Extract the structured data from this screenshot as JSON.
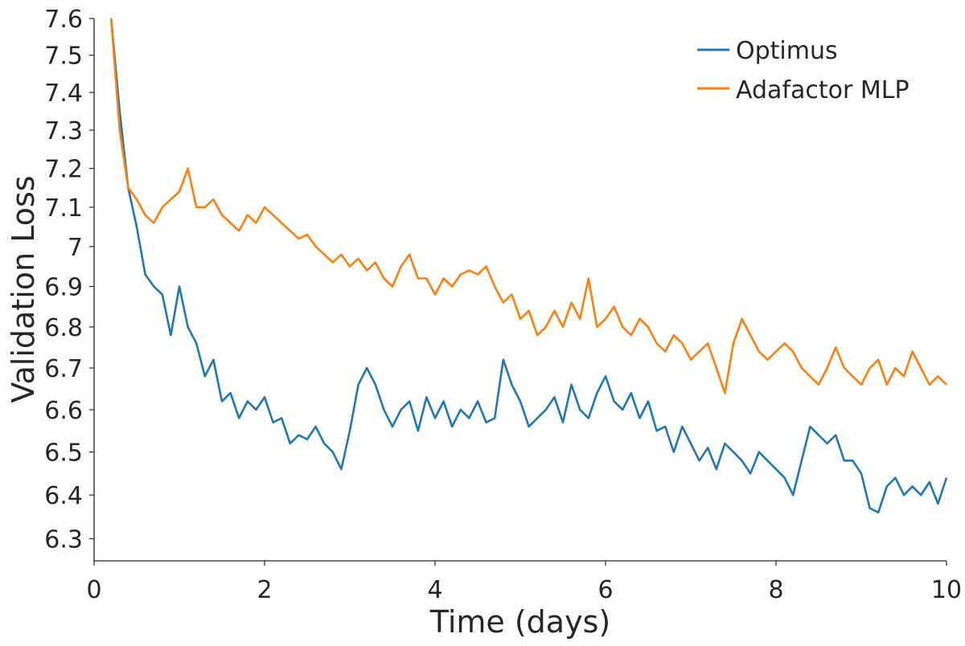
{
  "chart_data": {
    "type": "line",
    "title": "",
    "xlabel": "Time (days)",
    "ylabel": "Validation Loss",
    "xlim": [
      0,
      10
    ],
    "ylim": [
      6.25,
      7.6
    ],
    "yscale": "log",
    "grid": false,
    "legend_position": "top-right",
    "x_ticks": [
      "0",
      "2",
      "4",
      "6",
      "8",
      "10"
    ],
    "y_ticks": [
      "6.3",
      "6.4",
      "6.5",
      "6.6",
      "6.7",
      "6.8",
      "6.9",
      "7",
      "7.1",
      "7.2",
      "7.3",
      "7.4",
      "7.5",
      "7.6"
    ],
    "x": [
      0.2,
      0.3,
      0.4,
      0.5,
      0.6,
      0.7,
      0.8,
      0.9,
      1.0,
      1.1,
      1.2,
      1.3,
      1.4,
      1.5,
      1.6,
      1.7,
      1.8,
      1.9,
      2.0,
      2.1,
      2.2,
      2.3,
      2.4,
      2.5,
      2.6,
      2.7,
      2.8,
      2.9,
      3.0,
      3.1,
      3.2,
      3.3,
      3.4,
      3.5,
      3.6,
      3.7,
      3.8,
      3.9,
      4.0,
      4.1,
      4.2,
      4.3,
      4.4,
      4.5,
      4.6,
      4.7,
      4.8,
      4.9,
      5.0,
      5.1,
      5.2,
      5.3,
      5.4,
      5.5,
      5.6,
      5.7,
      5.8,
      5.9,
      6.0,
      6.1,
      6.2,
      6.3,
      6.4,
      6.5,
      6.6,
      6.7,
      6.8,
      6.9,
      7.0,
      7.1,
      7.2,
      7.3,
      7.4,
      7.5,
      7.6,
      7.7,
      7.8,
      7.9,
      8.0,
      8.1,
      8.2,
      8.3,
      8.4,
      8.5,
      8.6,
      8.7,
      8.8,
      8.9,
      9.0,
      9.1,
      9.2,
      9.3,
      9.4,
      9.5,
      9.6,
      9.7,
      9.8,
      9.9,
      10.0
    ],
    "series": [
      {
        "name": "Optimus",
        "color": "#1f77b4",
        "values": [
          7.6,
          7.35,
          7.15,
          7.05,
          6.93,
          6.9,
          6.88,
          6.78,
          6.9,
          6.8,
          6.76,
          6.68,
          6.72,
          6.62,
          6.64,
          6.58,
          6.62,
          6.6,
          6.63,
          6.57,
          6.58,
          6.52,
          6.54,
          6.53,
          6.56,
          6.52,
          6.5,
          6.46,
          6.55,
          6.66,
          6.7,
          6.66,
          6.6,
          6.56,
          6.6,
          6.62,
          6.55,
          6.63,
          6.58,
          6.62,
          6.56,
          6.6,
          6.58,
          6.62,
          6.57,
          6.58,
          6.72,
          6.66,
          6.62,
          6.56,
          6.58,
          6.6,
          6.63,
          6.57,
          6.66,
          6.6,
          6.58,
          6.64,
          6.68,
          6.62,
          6.6,
          6.64,
          6.58,
          6.62,
          6.55,
          6.56,
          6.5,
          6.56,
          6.52,
          6.48,
          6.51,
          6.46,
          6.52,
          6.5,
          6.48,
          6.45,
          6.5,
          6.48,
          6.46,
          6.44,
          6.4,
          6.48,
          6.56,
          6.54,
          6.52,
          6.54,
          6.48,
          6.48,
          6.45,
          6.37,
          6.36,
          6.42,
          6.44,
          6.4,
          6.42,
          6.4,
          6.43,
          6.38,
          6.44
        ]
      },
      {
        "name": "Adafactor MLP",
        "color": "#ff7f0e",
        "values": [
          7.6,
          7.3,
          7.15,
          7.12,
          7.08,
          7.06,
          7.1,
          7.12,
          7.14,
          7.2,
          7.1,
          7.1,
          7.12,
          7.08,
          7.06,
          7.04,
          7.08,
          7.06,
          7.1,
          7.08,
          7.06,
          7.04,
          7.02,
          7.03,
          7.0,
          6.98,
          6.96,
          6.98,
          6.95,
          6.97,
          6.94,
          6.96,
          6.92,
          6.9,
          6.95,
          6.98,
          6.92,
          6.92,
          6.88,
          6.92,
          6.9,
          6.93,
          6.94,
          6.93,
          6.95,
          6.9,
          6.86,
          6.88,
          6.82,
          6.84,
          6.78,
          6.8,
          6.84,
          6.8,
          6.86,
          6.82,
          6.92,
          6.8,
          6.82,
          6.85,
          6.8,
          6.78,
          6.82,
          6.8,
          6.76,
          6.74,
          6.78,
          6.76,
          6.72,
          6.74,
          6.76,
          6.7,
          6.64,
          6.76,
          6.82,
          6.78,
          6.74,
          6.72,
          6.74,
          6.76,
          6.74,
          6.7,
          6.68,
          6.66,
          6.7,
          6.75,
          6.7,
          6.68,
          6.66,
          6.7,
          6.72,
          6.66,
          6.7,
          6.68,
          6.74,
          6.7,
          6.66,
          6.68,
          6.66
        ]
      }
    ]
  }
}
